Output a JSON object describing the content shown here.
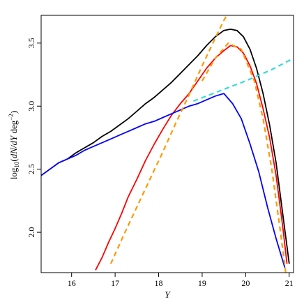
{
  "chart_data": {
    "type": "line",
    "title": "",
    "xlabel": "Y",
    "ylabel": "log10(dN/dY deg^-2)",
    "xlim": [
      15.3,
      21.1
    ],
    "ylim": [
      1.68,
      3.72
    ],
    "xticks": [
      16,
      17,
      18,
      19,
      20,
      21
    ],
    "yticks": [
      2.0,
      2.5,
      3.0,
      3.5
    ],
    "grid": false,
    "legend": "none",
    "series": [
      {
        "color": "#000000",
        "style": "solid",
        "x": [
          15.3,
          15.5,
          15.7,
          15.9,
          16.1,
          16.3,
          16.5,
          16.7,
          16.9,
          17.1,
          17.3,
          17.5,
          17.7,
          17.9,
          18.1,
          18.3,
          18.5,
          18.7,
          18.9,
          19.1,
          19.3,
          19.5,
          19.65,
          19.8,
          19.95,
          20.1,
          20.25,
          20.4,
          20.55,
          20.7,
          20.85,
          21.0
        ],
        "y": [
          2.45,
          2.5,
          2.55,
          2.58,
          2.63,
          2.67,
          2.71,
          2.76,
          2.8,
          2.85,
          2.9,
          2.96,
          3.02,
          3.07,
          3.13,
          3.19,
          3.26,
          3.33,
          3.4,
          3.48,
          3.55,
          3.6,
          3.61,
          3.6,
          3.55,
          3.45,
          3.3,
          3.1,
          2.85,
          2.55,
          2.15,
          1.75
        ]
      },
      {
        "color": "#ff0000",
        "style": "solid",
        "x": [
          16.55,
          16.7,
          16.85,
          17.0,
          17.15,
          17.3,
          17.5,
          17.7,
          17.9,
          18.1,
          18.3,
          18.5,
          18.7,
          18.9,
          19.1,
          19.3,
          19.5,
          19.65,
          19.8,
          19.95,
          20.1,
          20.25,
          20.4,
          20.55,
          20.7,
          20.85,
          20.95
        ],
        "y": [
          1.7,
          1.8,
          1.92,
          2.03,
          2.15,
          2.28,
          2.42,
          2.57,
          2.7,
          2.82,
          2.93,
          3.02,
          3.1,
          3.2,
          3.3,
          3.38,
          3.44,
          3.48,
          3.47,
          3.42,
          3.32,
          3.18,
          2.98,
          2.75,
          2.45,
          2.05,
          1.75
        ]
      },
      {
        "color": "#0000ff",
        "style": "solid",
        "x": [
          15.3,
          15.5,
          15.7,
          15.9,
          16.1,
          16.3,
          16.5,
          16.7,
          16.9,
          17.1,
          17.3,
          17.5,
          17.7,
          17.9,
          18.1,
          18.3,
          18.5,
          18.7,
          18.9,
          19.1,
          19.3,
          19.5,
          19.7,
          19.9,
          20.1,
          20.3,
          20.5,
          20.7,
          20.9
        ],
        "y": [
          2.45,
          2.5,
          2.55,
          2.58,
          2.61,
          2.65,
          2.68,
          2.71,
          2.74,
          2.77,
          2.8,
          2.83,
          2.86,
          2.88,
          2.91,
          2.94,
          2.97,
          3.0,
          3.02,
          3.05,
          3.08,
          3.1,
          3.02,
          2.9,
          2.7,
          2.48,
          2.2,
          1.95,
          1.72
        ]
      },
      {
        "color": "#ff9900",
        "style": "dashed",
        "x": [
          16.9,
          17.2,
          17.5,
          17.8,
          18.1,
          18.4,
          18.7,
          19.0,
          19.3,
          19.5,
          19.7
        ],
        "y": [
          1.75,
          1.98,
          2.2,
          2.42,
          2.64,
          2.87,
          3.09,
          3.32,
          3.54,
          3.68,
          3.8
        ]
      },
      {
        "color": "#ff9900",
        "style": "dashed",
        "x": [
          19.0,
          19.3,
          19.6,
          19.9,
          20.2,
          20.4,
          20.6,
          20.8,
          20.95
        ],
        "y": [
          3.2,
          3.38,
          3.5,
          3.45,
          3.2,
          2.9,
          2.5,
          2.0,
          1.6
        ]
      },
      {
        "color": "#33dddd",
        "style": "dashed",
        "x": [
          18.8,
          19.4,
          20.0,
          20.6,
          21.1
        ],
        "y": [
          3.04,
          3.12,
          3.2,
          3.29,
          3.38
        ]
      }
    ]
  }
}
